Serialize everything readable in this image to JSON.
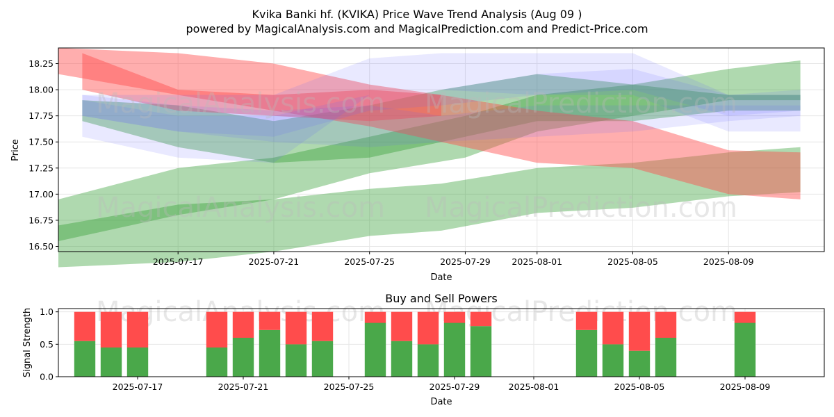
{
  "title_line1": "Kvika Banki hf. (KVIKA) Price Wave Trend Analysis (Aug 09 )",
  "title_line2": "powered by MagicalAnalysis.com and MagicalPrediction.com and Predict-Price.com",
  "watermarks": [
    "MagicalAnalysis.com",
    "MagicalPrediction.com"
  ],
  "colors": {
    "green": "#2e9b2e",
    "red": "#ff4c4c",
    "blue": "#6464ff",
    "buy": "#4aa84a",
    "sell": "#ff4c4c"
  },
  "chart_data": [
    {
      "type": "area",
      "xlabel": "Date",
      "ylabel": "Price",
      "ylim": [
        16.45,
        18.4
      ],
      "xlim": [
        "2025-07-12",
        "2025-08-13"
      ],
      "yticks": [
        "16.50",
        "16.75",
        "17.00",
        "17.25",
        "17.50",
        "17.75",
        "18.00",
        "18.25"
      ],
      "xticks": [
        "2025-07-17",
        "2025-07-21",
        "2025-07-25",
        "2025-07-29",
        "2025-08-01",
        "2025-08-05",
        "2025-08-09"
      ],
      "grid": true,
      "bands": [
        {
          "color": "green",
          "x": [
            "2025-07-12",
            "2025-07-17",
            "2025-07-21",
            "2025-07-25",
            "2025-07-29",
            "2025-08-01",
            "2025-08-05",
            "2025-08-09",
            "2025-08-12"
          ],
          "upper": [
            16.95,
            17.25,
            17.35,
            17.55,
            17.75,
            17.95,
            18.05,
            18.2,
            18.28
          ],
          "lower": [
            16.55,
            16.8,
            16.95,
            17.2,
            17.35,
            17.6,
            17.75,
            17.9,
            17.9
          ]
        },
        {
          "color": "green",
          "x": [
            "2025-07-12",
            "2025-07-17",
            "2025-07-21",
            "2025-07-25",
            "2025-07-28",
            "2025-08-01",
            "2025-08-05",
            "2025-08-09",
            "2025-08-12"
          ],
          "upper": [
            16.7,
            16.9,
            16.95,
            17.05,
            17.1,
            17.25,
            17.3,
            17.4,
            17.45
          ],
          "lower": [
            16.3,
            16.35,
            16.45,
            16.6,
            16.65,
            16.82,
            16.87,
            16.98,
            17.02
          ]
        },
        {
          "color": "green",
          "x": [
            "2025-07-13",
            "2025-07-17",
            "2025-07-21",
            "2025-07-25",
            "2025-07-28",
            "2025-08-01",
            "2025-08-05",
            "2025-08-09",
            "2025-08-12"
          ],
          "upper": [
            17.9,
            17.85,
            17.7,
            17.85,
            18.0,
            18.15,
            18.05,
            17.95,
            17.95
          ],
          "lower": [
            17.7,
            17.45,
            17.3,
            17.35,
            17.5,
            17.7,
            17.7,
            17.8,
            17.8
          ]
        },
        {
          "color": "red",
          "x": [
            "2025-07-12",
            "2025-07-17",
            "2025-07-21",
            "2025-07-25",
            "2025-07-28",
            "2025-08-01",
            "2025-08-05",
            "2025-08-09",
            "2025-08-12"
          ],
          "upper": [
            18.4,
            18.35,
            18.25,
            18.05,
            17.95,
            17.8,
            17.7,
            17.42,
            17.4
          ],
          "lower": [
            18.15,
            17.95,
            17.8,
            17.65,
            17.5,
            17.3,
            17.25,
            17.0,
            16.95
          ]
        },
        {
          "color": "red",
          "x": [
            "2025-07-13",
            "2025-07-17",
            "2025-07-21",
            "2025-07-25",
            "2025-07-28"
          ],
          "upper": [
            18.35,
            18.0,
            17.95,
            18.0,
            17.95
          ],
          "lower": [
            18.0,
            17.8,
            17.75,
            17.7,
            17.75
          ]
        },
        {
          "color": "blue",
          "x": [
            "2025-07-13",
            "2025-07-17",
            "2025-07-21",
            "2025-07-25",
            "2025-07-28",
            "2025-08-01",
            "2025-08-05",
            "2025-08-09",
            "2025-08-12"
          ],
          "upper": [
            17.95,
            17.95,
            17.95,
            18.3,
            18.35,
            18.35,
            18.35,
            17.95,
            17.95
          ],
          "lower": [
            17.55,
            17.35,
            17.3,
            17.95,
            18.0,
            17.95,
            17.95,
            17.6,
            17.6
          ]
        },
        {
          "color": "blue",
          "x": [
            "2025-07-13",
            "2025-07-17",
            "2025-07-21",
            "2025-07-25",
            "2025-07-28",
            "2025-08-01",
            "2025-08-05",
            "2025-08-09",
            "2025-08-12"
          ],
          "upper": [
            17.95,
            17.85,
            17.8,
            17.85,
            17.75,
            17.85,
            17.85,
            17.85,
            17.85
          ],
          "lower": [
            17.75,
            17.6,
            17.5,
            17.45,
            17.5,
            17.55,
            17.6,
            17.7,
            17.75
          ]
        },
        {
          "color": "blue",
          "x": [
            "2025-07-13",
            "2025-07-17",
            "2025-07-21",
            "2025-07-25",
            "2025-07-28",
            "2025-08-01",
            "2025-08-05",
            "2025-08-09",
            "2025-08-12"
          ],
          "upper": [
            17.9,
            17.75,
            17.75,
            17.95,
            18.0,
            18.15,
            18.2,
            17.95,
            18.0
          ],
          "lower": [
            17.75,
            17.6,
            17.55,
            17.8,
            17.85,
            17.95,
            18.0,
            17.75,
            17.8
          ]
        }
      ]
    },
    {
      "type": "bar",
      "title": "Buy and Sell Powers",
      "xlabel": "Date",
      "ylabel": "Signal Strength",
      "ylim": [
        0,
        1.05
      ],
      "yticks": [
        "0.0",
        "0.5",
        "1.0"
      ],
      "xlim": [
        "2025-07-14",
        "2025-08-12"
      ],
      "xticks": [
        "2025-07-17",
        "2025-07-21",
        "2025-07-25",
        "2025-07-29",
        "2025-08-01",
        "2025-08-05",
        "2025-08-09"
      ],
      "categories": [
        "2025-07-15",
        "2025-07-16",
        "2025-07-17",
        "2025-07-20",
        "2025-07-21",
        "2025-07-22",
        "2025-07-23",
        "2025-07-24",
        "2025-07-26",
        "2025-07-27",
        "2025-07-28",
        "2025-07-29",
        "2025-07-30",
        "2025-08-03",
        "2025-08-04",
        "2025-08-05",
        "2025-08-06",
        "2025-08-09"
      ],
      "series": [
        {
          "name": "",
          "color": "buy",
          "values": [
            0.55,
            0.45,
            0.45,
            0.45,
            0.6,
            0.72,
            0.5,
            0.55,
            0.83,
            0.55,
            0.5,
            0.83,
            0.78,
            0.72,
            0.5,
            0.4,
            0.6,
            0.83
          ]
        },
        {
          "name": "",
          "color": "sell",
          "values": [
            0.45,
            0.55,
            0.55,
            0.55,
            0.4,
            0.28,
            0.5,
            0.45,
            0.17,
            0.45,
            0.5,
            0.17,
            0.22,
            0.28,
            0.5,
            0.6,
            0.4,
            0.17
          ]
        }
      ]
    }
  ]
}
